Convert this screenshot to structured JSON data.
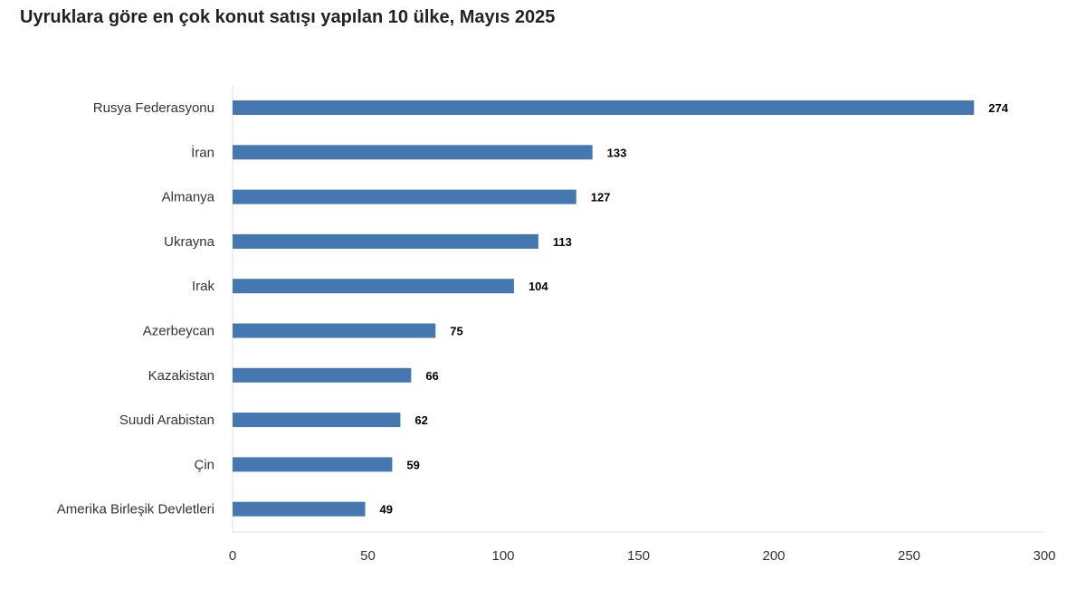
{
  "chart_data": {
    "type": "bar",
    "orientation": "horizontal",
    "title": "Uyruklara göre en çok konut satışı yapılan 10 ülke, Mayıs 2025",
    "categories": [
      "Rusya Federasyonu",
      "İran",
      "Almanya",
      "Ukrayna",
      "Irak",
      "Azerbeycan",
      "Kazakistan",
      "Suudi Arabistan",
      "Çin",
      "Amerika Birleşik Devletleri"
    ],
    "values": [
      274,
      133,
      127,
      113,
      104,
      75,
      66,
      62,
      59,
      49
    ],
    "xlim": [
      0,
      300
    ],
    "xticks": [
      "0",
      "50",
      "100",
      "150",
      "200",
      "250",
      "300"
    ],
    "xlabel": "",
    "ylabel": "",
    "bar_color": "#4577b0",
    "grid": false
  }
}
